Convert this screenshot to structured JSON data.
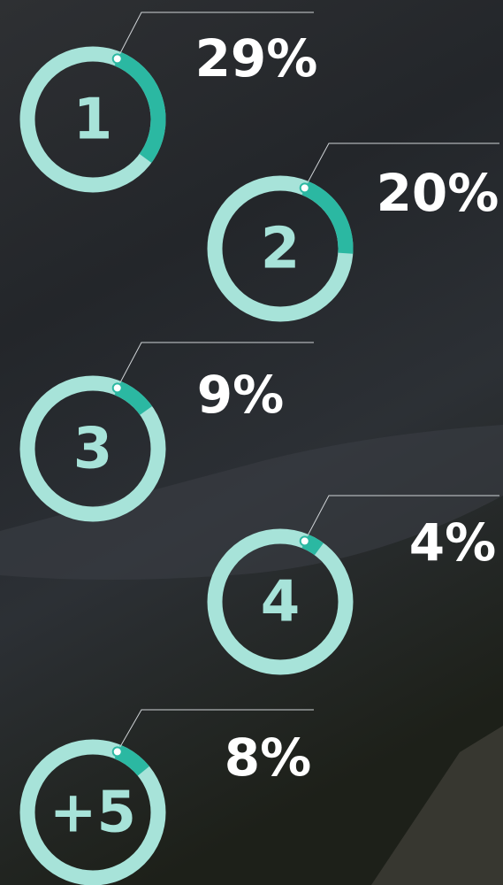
{
  "chart_data": {
    "type": "donut-list",
    "categories": [
      "1",
      "2",
      "3",
      "4",
      "+5"
    ],
    "values": [
      29,
      20,
      9,
      4,
      8
    ],
    "value_labels": [
      "29%",
      "20%",
      "9%",
      "4%",
      "8%"
    ],
    "ring_color": "#a7e3d9",
    "arc_color": "#2bb8a2"
  }
}
